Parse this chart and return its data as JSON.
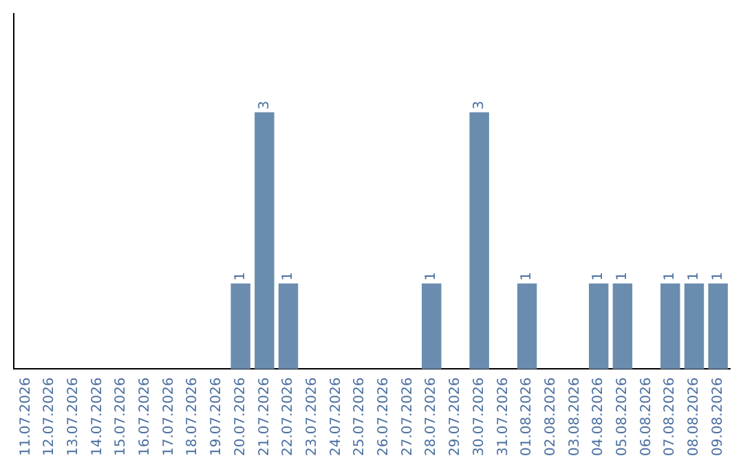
{
  "chart_data": {
    "type": "bar",
    "categories": [
      "11.07.2026",
      "12.07.2026",
      "13.07.2026",
      "14.07.2026",
      "15.07.2026",
      "16.07.2026",
      "17.07.2026",
      "18.07.2026",
      "19.07.2026",
      "20.07.2026",
      "21.07.2026",
      "22.07.2026",
      "23.07.2026",
      "24.07.2026",
      "25.07.2026",
      "26.07.2026",
      "27.07.2026",
      "28.07.2026",
      "29.07.2026",
      "30.07.2026",
      "31.07.2026",
      "01.08.2026",
      "02.08.2026",
      "03.08.2026",
      "04.08.2026",
      "05.08.2026",
      "06.08.2026",
      "07.08.2026",
      "08.08.2026",
      "09.08.2026"
    ],
    "values": [
      0,
      0,
      0,
      0,
      0,
      0,
      0,
      0,
      0,
      1,
      3,
      1,
      0,
      0,
      0,
      0,
      0,
      1,
      0,
      3,
      0,
      1,
      0,
      0,
      1,
      1,
      0,
      1,
      1,
      1
    ],
    "value_labels": [
      null,
      null,
      null,
      null,
      null,
      null,
      null,
      null,
      null,
      "1",
      "3",
      "1",
      null,
      null,
      null,
      null,
      null,
      "1",
      null,
      "3",
      null,
      "1",
      null,
      null,
      "1",
      "1",
      null,
      "1",
      "1",
      "1"
    ],
    "color": "#6a8caf",
    "ylim": [
      0,
      4.15
    ],
    "tick_labels": "x",
    "grid": false,
    "legend": false
  }
}
